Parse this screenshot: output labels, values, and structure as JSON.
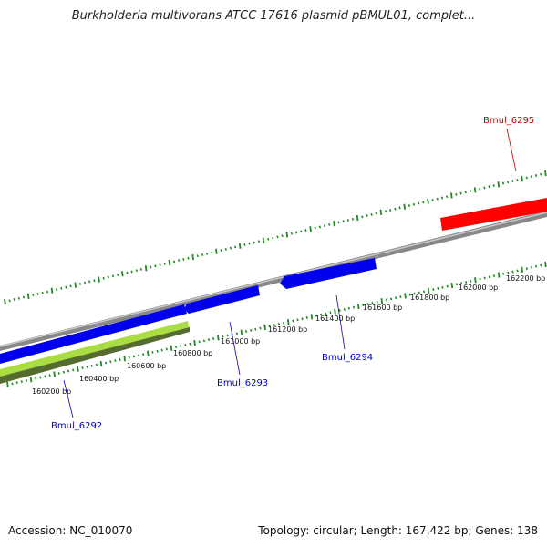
{
  "title": "Burkholderia multivorans ATCC 17616 plasmid pBMUL01, complet...",
  "footer": {
    "accession": "Accession: NC_010070",
    "summary": "Topology: circular; Length: 167,422 bp; Genes: 138"
  },
  "tick_labels": [
    "160200 bp",
    "160400 bp",
    "160600 bp",
    "160800 bp",
    "161000 bp",
    "161200 bp",
    "161400 bp",
    "161600 bp",
    "161800 bp",
    "162000 bp",
    "162200 bp"
  ],
  "genes": [
    {
      "name": "Bmul_6292",
      "color": "#0000cc"
    },
    {
      "name": "Bmul_6293",
      "color": "#0000cc"
    },
    {
      "name": "Bmul_6294",
      "color": "#0000cc"
    },
    {
      "name": "Bmul_6295",
      "color": "#cc0000"
    }
  ],
  "colors": {
    "backbone": "#888888",
    "tick": "#228822",
    "gene_forward": "#0000ee",
    "gene_reverse": "#ff0000",
    "gc_band": "#aadd44",
    "gc_band_dark": "#556b2f"
  }
}
